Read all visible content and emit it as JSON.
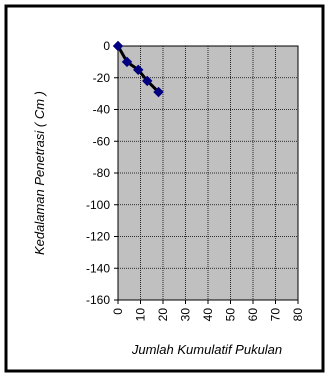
{
  "chart_data": {
    "type": "line",
    "title": "",
    "xlabel": "Jumlah Kumulatif Pukulan",
    "ylabel": "Kedalaman Penetrasi ( Cm )",
    "xlim": [
      0,
      80
    ],
    "ylim": [
      -160,
      0
    ],
    "xticks": [
      0,
      10,
      20,
      30,
      40,
      50,
      60,
      70,
      80
    ],
    "yticks": [
      0,
      -20,
      -40,
      -60,
      -80,
      -100,
      -120,
      -140,
      -160
    ],
    "grid": true,
    "legend": "none",
    "series": [
      {
        "color": "#000080",
        "marker": "diamond",
        "points": [
          {
            "x": 0,
            "y": 0
          },
          {
            "x": 4,
            "y": -10
          },
          {
            "x": 9,
            "y": -15
          },
          {
            "x": 13,
            "y": -22
          },
          {
            "x": 18,
            "y": -29
          }
        ]
      }
    ],
    "plot_background": "#c0c0c0",
    "trendline_color": "#000000"
  }
}
